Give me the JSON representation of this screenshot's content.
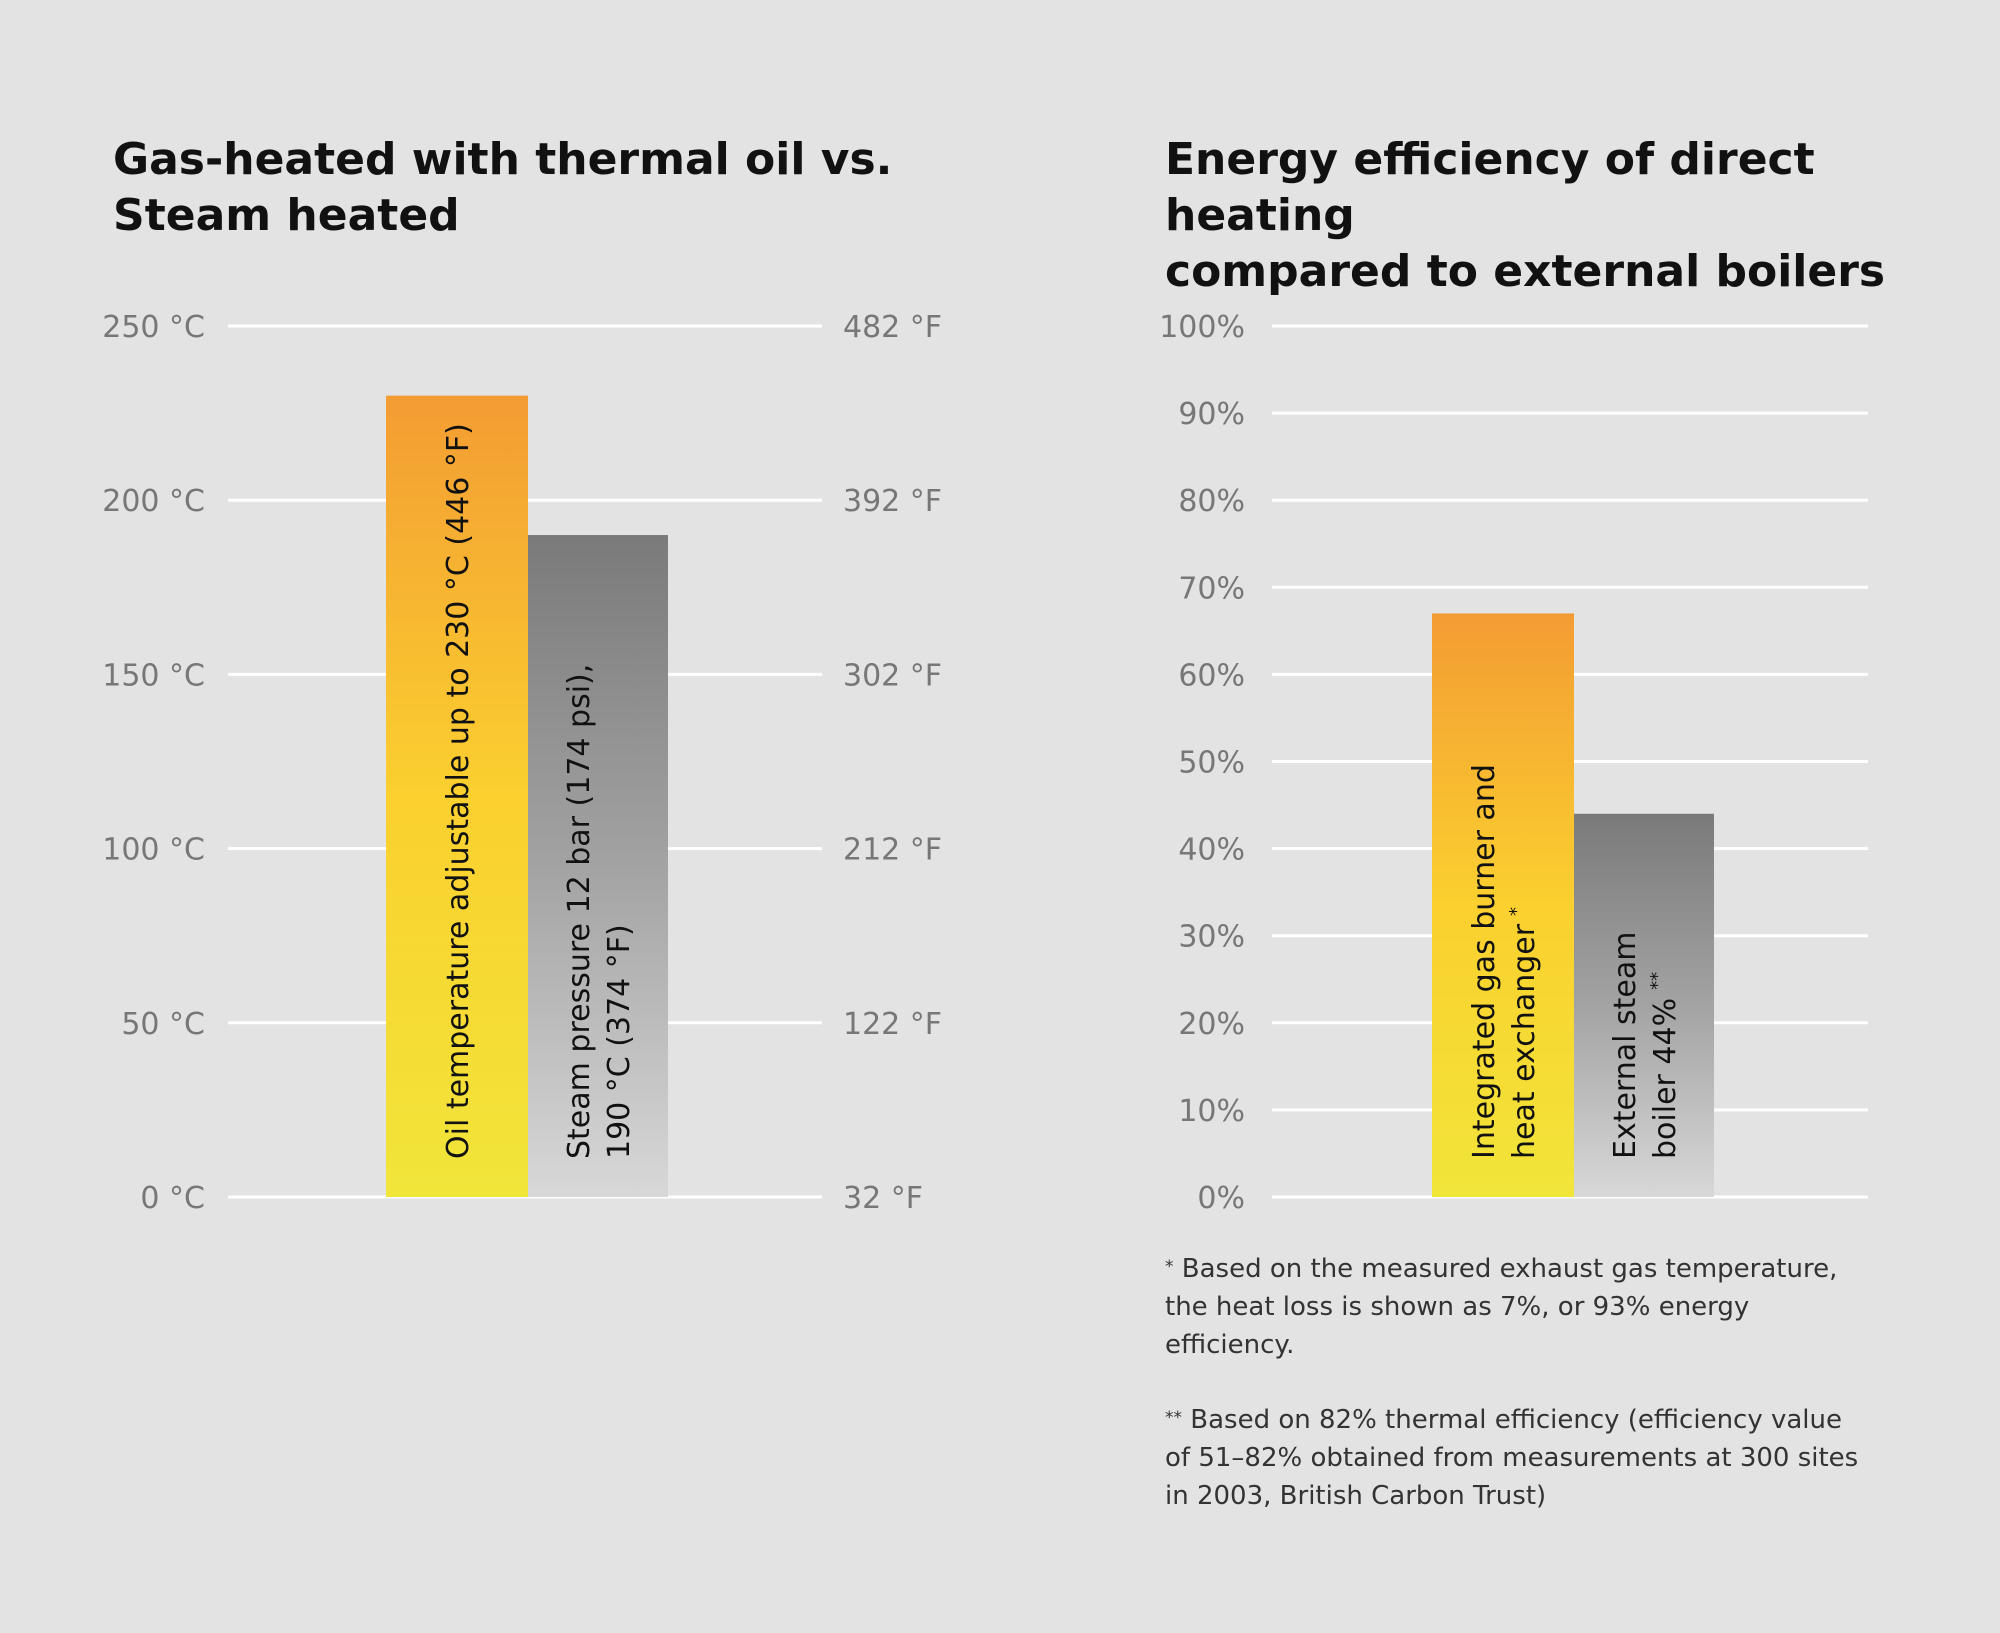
{
  "chart_data": [
    {
      "type": "bar",
      "title": "Gas-heated with thermal oil vs.\nSteam heated",
      "ylabel": "°C",
      "ylabel_right": "°F",
      "ylim": [
        0,
        250
      ],
      "left_ticks": [
        "0 °C",
        "50 °C",
        "100 °C",
        "150 °C",
        "200 °C",
        "250 °C"
      ],
      "right_ticks": [
        "32 °F",
        "122 °F",
        "212 °F",
        "302 °F",
        "392 °F",
        "482 °F"
      ],
      "grid": true,
      "bars": [
        {
          "label": [
            "Oil temperature adjustable up to 230 °C (446 °F)"
          ],
          "value": 230,
          "gradient": [
            "#f39c33",
            "#fbd02f",
            "#f1e53a"
          ]
        },
        {
          "label": [
            "Steam pressure 12 bar (174 psi),",
            "190 °C (374 °F)"
          ],
          "value": 190,
          "gradient": [
            "#7a7a7a",
            "#a3a3a3",
            "#d8d8d8"
          ]
        }
      ]
    },
    {
      "type": "bar",
      "title": "Energy efficiency of direct heating\ncompared to external boilers",
      "ylim": [
        0,
        100
      ],
      "left_ticks": [
        "0%",
        "10%",
        "20%",
        "30%",
        "40%",
        "50%",
        "60%",
        "70%",
        "80%",
        "90%",
        "100%"
      ],
      "grid": true,
      "bars": [
        {
          "label": [
            "Integrated gas burner and",
            "heat exchanger"
          ],
          "mark": "*",
          "value": 67,
          "gradient": [
            "#f39c33",
            "#fbd02f",
            "#f1e53a"
          ]
        },
        {
          "label": [
            "External steam",
            "boiler 44%"
          ],
          "mark": "**",
          "value": 44,
          "gradient": [
            "#7a7a7a",
            "#a3a3a3",
            "#d8d8d8"
          ]
        }
      ]
    }
  ],
  "footnotes": [
    {
      "mark": "*",
      "text": "Based on the measured exhaust gas temperature, the heat loss is shown as 7%, or 93% energy efficiency."
    },
    {
      "mark": "**",
      "text": "Based on 82% thermal efficiency (efficiency value of 51–82% obtained from measurements at 300 sites in 2003, British Carbon Trust)"
    }
  ]
}
